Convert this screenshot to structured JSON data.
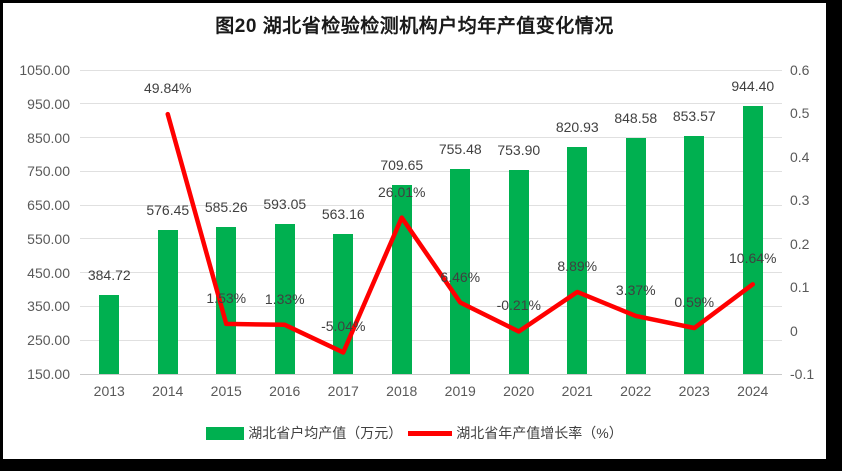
{
  "title": "图20 湖北省检验检测机构户均年产值变化情况",
  "colors": {
    "bar": "#00B050",
    "line": "#FF0000",
    "grid": "#E0E0E0",
    "axis_line": "#C9C9C9",
    "tick_text": "#595959",
    "data_label_text": "#404040",
    "title_text": "#1A1A1A",
    "frame": "#000000"
  },
  "legend": {
    "bar_label": "湖北省户均产值（万元）",
    "line_label": "湖北省年产值增长率（%）"
  },
  "chart_data": {
    "type": "bar+line combo",
    "title": "图20 湖北省检验检测机构户均年产值变化情况",
    "categories": [
      "2013",
      "2014",
      "2015",
      "2016",
      "2017",
      "2018",
      "2019",
      "2020",
      "2021",
      "2022",
      "2023",
      "2024"
    ],
    "series": [
      {
        "name": "湖北省户均产值（万元）",
        "type": "bar",
        "axis": "left",
        "color": "#00B050",
        "values": [
          384.72,
          576.45,
          585.26,
          593.05,
          563.16,
          709.65,
          755.48,
          753.9,
          820.93,
          848.58,
          853.57,
          944.4
        ],
        "data_labels": [
          "384.72",
          "576.45",
          "585.26",
          "593.05",
          "563.16",
          "709.65",
          "755.48",
          "753.90",
          "820.93",
          "848.58",
          "853.57",
          "944.40"
        ]
      },
      {
        "name": "湖北省年产值增长率（%）",
        "type": "line",
        "axis": "right",
        "color": "#FF0000",
        "values": [
          null,
          0.4984,
          0.0153,
          0.0133,
          -0.0504,
          0.2601,
          0.0646,
          -0.0021,
          0.0889,
          0.0337,
          0.0059,
          0.1064
        ],
        "data_labels": [
          null,
          "49.84%",
          "1.53%",
          "1.33%",
          "-5.04%",
          "26.01%",
          "6.46%",
          "-0.21%",
          "8.89%",
          "3.37%",
          "0.59%",
          "10.64%"
        ]
      }
    ],
    "left_axis": {
      "min": 150,
      "max": 1050,
      "tick_labels": [
        "1050.00",
        "950.00",
        "850.00",
        "750.00",
        "650.00",
        "550.00",
        "450.00",
        "350.00",
        "250.00",
        "150.00"
      ]
    },
    "right_axis": {
      "min": -0.1,
      "max": 0.6,
      "tick_labels": [
        "0.6",
        "0.5",
        "0.4",
        "0.3",
        "0.2",
        "0.1",
        "0",
        "-0.1"
      ]
    },
    "grid": true,
    "legend_position": "bottom"
  }
}
